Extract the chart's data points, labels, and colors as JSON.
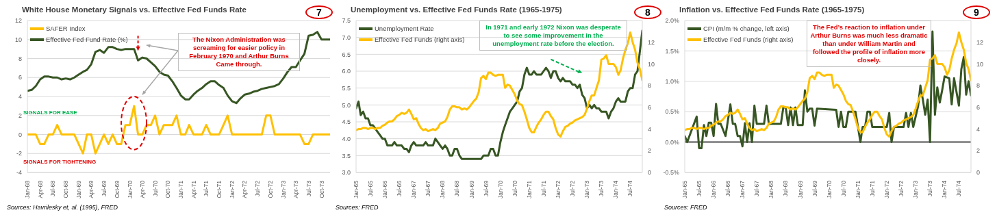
{
  "chart_data": [
    {
      "type": "line",
      "title": "White House Monetary Signals vs. Effective Fed Funds Rate",
      "legend": "top left",
      "grid": "y",
      "x": [
        "1968-01",
        "1968-02",
        "1968-03",
        "1968-04",
        "1968-05",
        "1968-06",
        "1968-07",
        "1968-08",
        "1968-09",
        "1968-10",
        "1968-11",
        "1968-12",
        "1969-01",
        "1969-02",
        "1969-03",
        "1969-04",
        "1969-05",
        "1969-06",
        "1969-07",
        "1969-08",
        "1969-09",
        "1969-10",
        "1969-11",
        "1969-12",
        "1970-01",
        "1970-02",
        "1970-03",
        "1970-04",
        "1970-05",
        "1970-06",
        "1970-07",
        "1970-08",
        "1970-09",
        "1970-10",
        "1970-11",
        "1970-12",
        "1971-01",
        "1971-02",
        "1971-03",
        "1971-04",
        "1971-05",
        "1971-06",
        "1971-07",
        "1971-08",
        "1971-09",
        "1971-10",
        "1971-11",
        "1971-12",
        "1972-01",
        "1972-02",
        "1972-03",
        "1972-04",
        "1972-05",
        "1972-06",
        "1972-07",
        "1972-08",
        "1972-09",
        "1972-10",
        "1972-11",
        "1972-12",
        "1973-01",
        "1973-02",
        "1973-03",
        "1973-04",
        "1973-05",
        "1973-06",
        "1973-07",
        "1973-08",
        "1973-09",
        "1973-10",
        "1973-11",
        "1973-12"
      ],
      "xlim": [
        "1968-01",
        "1973-12"
      ],
      "xticks": [
        {
          "value": "1968-01",
          "label": "Jan-68"
        },
        {
          "value": "1968-04",
          "label": "Apr-68"
        },
        {
          "value": "1968-07",
          "label": "Jul-68"
        },
        {
          "value": "1968-10",
          "label": "Oct-68"
        },
        {
          "value": "1969-01",
          "label": "Jan-69"
        },
        {
          "value": "1969-04",
          "label": "Apr-69"
        },
        {
          "value": "1969-07",
          "label": "Jul-69"
        },
        {
          "value": "1969-10",
          "label": "Oct-69"
        },
        {
          "value": "1970-01",
          "label": "Jan-70"
        },
        {
          "value": "1970-04",
          "label": "Apr-70"
        },
        {
          "value": "1970-07",
          "label": "Jul-70"
        },
        {
          "value": "1970-10",
          "label": "Oct-70"
        },
        {
          "value": "1971-01",
          "label": "Jan-71"
        },
        {
          "value": "1971-04",
          "label": "Apr-71"
        },
        {
          "value": "1971-07",
          "label": "Jul-71"
        },
        {
          "value": "1971-10",
          "label": "Oct-71"
        },
        {
          "value": "1972-01",
          "label": "Jan-72"
        },
        {
          "value": "1972-04",
          "label": "Apr-72"
        },
        {
          "value": "1972-07",
          "label": "Jul-72"
        },
        {
          "value": "1972-10",
          "label": "Oct-72"
        },
        {
          "value": "1973-01",
          "label": "Jan-73"
        },
        {
          "value": "1973-04",
          "label": "Apr-73"
        },
        {
          "value": "1973-07",
          "label": "Jul-73"
        },
        {
          "value": "1973-10",
          "label": "Oct-73"
        }
      ],
      "ylim": [
        -4,
        12
      ],
      "yticks": [
        -4,
        -2,
        0,
        2,
        4,
        6,
        8,
        10,
        12
      ],
      "series": [
        {
          "name": "SAFER Index",
          "color": "#ffc000",
          "values": [
            0,
            0,
            0,
            -1,
            -1,
            0,
            0,
            1,
            0,
            0,
            0,
            0,
            -1,
            -2,
            0,
            0,
            -2,
            -1,
            0,
            -1,
            0,
            -1,
            -1,
            1,
            1,
            3,
            0,
            0,
            1,
            1,
            2,
            0,
            1,
            1,
            1,
            2,
            0,
            0,
            1,
            0,
            0,
            0,
            1,
            0,
            0,
            0,
            1,
            2,
            0,
            0,
            0,
            0,
            0,
            0,
            0,
            0,
            2,
            2,
            0,
            0,
            0,
            0,
            0,
            0,
            0,
            -1,
            -1,
            0,
            0,
            0,
            0,
            0
          ]
        },
        {
          "name": "Effective Fed Fund Rate (%)",
          "color": "#375623",
          "values": [
            4.6,
            4.7,
            5.1,
            5.8,
            6.1,
            6.1,
            6.0,
            6.0,
            5.8,
            5.9,
            5.8,
            6.0,
            6.3,
            6.6,
            6.8,
            7.4,
            8.7,
            8.9,
            8.6,
            9.2,
            9.2,
            9.0,
            8.9,
            9.0,
            9.0,
            9.0,
            7.8,
            8.1,
            8.0,
            7.6,
            7.2,
            6.6,
            6.3,
            6.2,
            5.6,
            4.9,
            4.1,
            3.7,
            3.7,
            4.2,
            4.6,
            4.9,
            5.3,
            5.6,
            5.6,
            5.2,
            4.9,
            4.1,
            3.5,
            3.3,
            3.8,
            4.2,
            4.3,
            4.5,
            4.6,
            4.8,
            4.9,
            5.0,
            5.1,
            5.3,
            5.9,
            6.6,
            7.1,
            7.1,
            7.8,
            8.5,
            10.4,
            10.5,
            10.8,
            10.0,
            10.0,
            10.0
          ]
        }
      ],
      "annotations": [
        "7",
        "The Nixon Administration was screaming for easier policy in February 1970 and Arthur Burns Came through.",
        "SIGNALS FOR EASE",
        "SIGNALS FOR TIGHTENING",
        "Sources: Havrilesky et, al. (1995), FRED"
      ]
    },
    {
      "type": "line",
      "title": "Unemployment vs. Effective Fed Funds Rate (1965-1975)",
      "legend": "top left",
      "grid": "y",
      "x": [
        "1965-01",
        "1965-02",
        "1965-03",
        "1965-04",
        "1965-05",
        "1965-06",
        "1965-07",
        "1965-08",
        "1965-09",
        "1965-10",
        "1965-11",
        "1965-12",
        "1966-01",
        "1966-02",
        "1966-03",
        "1966-04",
        "1966-05",
        "1966-06",
        "1966-07",
        "1966-08",
        "1966-09",
        "1966-10",
        "1966-11",
        "1966-12",
        "1967-01",
        "1967-02",
        "1967-03",
        "1967-04",
        "1967-05",
        "1967-06",
        "1967-07",
        "1967-08",
        "1967-09",
        "1967-10",
        "1967-11",
        "1967-12",
        "1968-01",
        "1968-02",
        "1968-03",
        "1968-04",
        "1968-05",
        "1968-06",
        "1968-07",
        "1968-08",
        "1968-09",
        "1968-10",
        "1968-11",
        "1968-12",
        "1969-01",
        "1969-02",
        "1969-03",
        "1969-04",
        "1969-05",
        "1969-06",
        "1969-07",
        "1969-08",
        "1969-09",
        "1969-10",
        "1969-11",
        "1969-12",
        "1970-01",
        "1970-02",
        "1970-03",
        "1970-04",
        "1970-05",
        "1970-06",
        "1970-07",
        "1970-08",
        "1970-09",
        "1970-10",
        "1970-11",
        "1970-12",
        "1971-01",
        "1971-02",
        "1971-03",
        "1971-04",
        "1971-05",
        "1971-06",
        "1971-07",
        "1971-08",
        "1971-09",
        "1971-10",
        "1971-11",
        "1971-12",
        "1972-01",
        "1972-02",
        "1972-03",
        "1972-04",
        "1972-05",
        "1972-06",
        "1972-07",
        "1972-08",
        "1972-09",
        "1972-10",
        "1972-11",
        "1972-12",
        "1973-01",
        "1973-02",
        "1973-03",
        "1973-04",
        "1973-05",
        "1973-06",
        "1973-07",
        "1973-08",
        "1973-09",
        "1973-10",
        "1973-11",
        "1973-12",
        "1974-01",
        "1974-02",
        "1974-03",
        "1974-04",
        "1974-05",
        "1974-06",
        "1974-07",
        "1974-08",
        "1974-09",
        "1974-10",
        "1974-11",
        "1974-12"
      ],
      "xlim": [
        "1965-01",
        "1974-12"
      ],
      "xticks": [
        {
          "value": "1965-01",
          "label": "Jan-65"
        },
        {
          "value": "1965-07",
          "label": "Jul-65"
        },
        {
          "value": "1966-01",
          "label": "Jan-66"
        },
        {
          "value": "1966-07",
          "label": "Jul-66"
        },
        {
          "value": "1967-01",
          "label": "Jan-67"
        },
        {
          "value": "1967-07",
          "label": "Jul-67"
        },
        {
          "value": "1968-01",
          "label": "Jan-68"
        },
        {
          "value": "1968-07",
          "label": "Jul-68"
        },
        {
          "value": "1969-01",
          "label": "Jan-69"
        },
        {
          "value": "1969-07",
          "label": "Jul-69"
        },
        {
          "value": "1970-01",
          "label": "Jan-70"
        },
        {
          "value": "1970-07",
          "label": "Jul-70"
        },
        {
          "value": "1971-01",
          "label": "Jan-71"
        },
        {
          "value": "1971-07",
          "label": "Jul-71"
        },
        {
          "value": "1972-01",
          "label": "Jan-72"
        },
        {
          "value": "1972-07",
          "label": "Jul-72"
        },
        {
          "value": "1973-01",
          "label": "Jan-73"
        },
        {
          "value": "1973-07",
          "label": "Jul-73"
        },
        {
          "value": "1974-01",
          "label": "Jan-74"
        },
        {
          "value": "1974-07",
          "label": "Jul-74"
        }
      ],
      "ylim": [
        3,
        7.5
      ],
      "yticks": [
        {
          "value": 3,
          "label": "3.0"
        },
        3.5,
        {
          "value": 4,
          "label": "4.0"
        },
        4.5,
        {
          "value": 5,
          "label": "5.0"
        },
        5.5,
        {
          "value": 6,
          "label": "6.0"
        },
        6.5,
        {
          "value": 7,
          "label": "7.0"
        },
        7.5
      ],
      "y2lim": [
        0,
        14
      ],
      "y2ticks": [
        0,
        2,
        4,
        6,
        8,
        10,
        12
      ],
      "series": [
        {
          "name": "Unemployment Rate",
          "color": "#375623",
          "values": [
            4.9,
            5.1,
            4.7,
            4.8,
            4.6,
            4.6,
            4.4,
            4.4,
            4.3,
            4.2,
            4.1,
            4.0,
            4.0,
            3.8,
            3.8,
            3.8,
            3.9,
            3.8,
            3.8,
            3.8,
            3.7,
            3.7,
            3.6,
            3.8,
            3.9,
            3.8,
            3.8,
            3.8,
            3.8,
            3.9,
            3.8,
            3.8,
            3.8,
            4.0,
            3.9,
            3.8,
            3.7,
            3.8,
            3.7,
            3.5,
            3.5,
            3.7,
            3.7,
            3.5,
            3.4,
            3.4,
            3.4,
            3.4,
            3.4,
            3.4,
            3.4,
            3.4,
            3.4,
            3.5,
            3.5,
            3.5,
            3.7,
            3.7,
            3.5,
            3.5,
            3.9,
            4.2,
            4.4,
            4.6,
            4.8,
            4.9,
            5.0,
            5.1,
            5.4,
            5.5,
            5.9,
            6.1,
            5.9,
            5.9,
            6.0,
            5.9,
            5.9,
            5.9,
            6.0,
            6.1,
            6.0,
            5.8,
            6.0,
            6.0,
            5.8,
            5.7,
            5.8,
            5.7,
            5.7,
            5.7,
            5.6,
            5.6,
            5.5,
            5.6,
            5.3,
            5.2,
            4.9,
            5.0,
            4.9,
            5.0,
            4.9,
            4.9,
            4.8,
            4.8,
            4.8,
            4.6,
            4.8,
            4.9,
            5.1,
            5.2,
            5.1,
            5.1,
            5.1,
            5.4,
            5.5,
            5.5,
            5.9,
            6.0,
            6.6,
            7.2
          ]
        },
        {
          "name": "Effective Fed Funds (right axis)",
          "color": "#ffc000",
          "axis": "y2",
          "values": [
            3.9,
            4.0,
            4.0,
            4.1,
            4.1,
            4.0,
            4.1,
            4.1,
            4.0,
            4.1,
            4.1,
            4.3,
            4.4,
            4.6,
            4.7,
            4.7,
            4.9,
            5.2,
            5.3,
            5.5,
            5.4,
            5.5,
            5.8,
            5.4,
            4.9,
            5.0,
            4.5,
            4.1,
            3.9,
            4.0,
            3.8,
            3.9,
            4.0,
            3.9,
            4.1,
            4.5,
            4.6,
            4.7,
            5.1,
            5.8,
            6.1,
            6.1,
            6.0,
            6.0,
            5.8,
            5.9,
            5.8,
            6.0,
            6.3,
            6.6,
            6.8,
            7.4,
            8.7,
            8.9,
            8.6,
            9.2,
            9.2,
            9.0,
            8.9,
            9.0,
            9.0,
            9.0,
            7.8,
            8.1,
            8.0,
            7.6,
            7.2,
            6.6,
            6.3,
            6.2,
            5.6,
            4.9,
            4.1,
            3.7,
            3.7,
            4.2,
            4.6,
            4.9,
            5.3,
            5.6,
            5.6,
            5.2,
            4.9,
            4.1,
            3.5,
            3.3,
            3.8,
            4.2,
            4.3,
            4.5,
            4.6,
            4.8,
            4.9,
            5.0,
            5.1,
            5.3,
            5.9,
            6.6,
            7.1,
            7.1,
            7.8,
            8.5,
            10.4,
            10.5,
            10.8,
            10.0,
            10.0,
            10.0,
            9.7,
            9.0,
            9.4,
            10.5,
            11.3,
            11.9,
            12.9,
            12.0,
            11.3,
            10.1,
            9.5,
            8.5
          ]
        }
      ],
      "annotations": [
        "8",
        "In 1971 and early 1972 Nixon was desperate to see some improvement in the unemployment rate before the election.",
        "Sources: FRED"
      ]
    },
    {
      "type": "line",
      "title": "Inflation vs. Effective Fed Funds Rate (1965-1975)",
      "legend": "top left",
      "grid": "y",
      "x": [
        "1965-01",
        "1965-02",
        "1965-03",
        "1965-04",
        "1965-05",
        "1965-06",
        "1965-07",
        "1965-08",
        "1965-09",
        "1965-10",
        "1965-11",
        "1965-12",
        "1966-01",
        "1966-02",
        "1966-03",
        "1966-04",
        "1966-05",
        "1966-06",
        "1966-07",
        "1966-08",
        "1966-09",
        "1966-10",
        "1966-11",
        "1966-12",
        "1967-01",
        "1967-02",
        "1967-03",
        "1967-04",
        "1967-05",
        "1967-06",
        "1967-07",
        "1967-08",
        "1967-09",
        "1967-10",
        "1967-11",
        "1967-12",
        "1968-01",
        "1968-02",
        "1968-03",
        "1968-04",
        "1968-05",
        "1968-06",
        "1968-07",
        "1968-08",
        "1968-09",
        "1968-10",
        "1968-11",
        "1968-12",
        "1969-01",
        "1969-02",
        "1969-03",
        "1969-04",
        "1969-05",
        "1969-06",
        "1969-07",
        "1969-08",
        "1969-09",
        "1969-10",
        "1969-11",
        "1969-12",
        "1970-01",
        "1970-02",
        "1970-03",
        "1970-04",
        "1970-05",
        "1970-06",
        "1970-07",
        "1970-08",
        "1970-09",
        "1970-10",
        "1970-11",
        "1970-12",
        "1971-01",
        "1971-02",
        "1971-03",
        "1971-04",
        "1971-05",
        "1971-06",
        "1971-07",
        "1971-08",
        "1971-09",
        "1971-10",
        "1971-11",
        "1971-12",
        "1972-01",
        "1972-02",
        "1972-03",
        "1972-04",
        "1972-05",
        "1972-06",
        "1972-07",
        "1972-08",
        "1972-09",
        "1972-10",
        "1972-11",
        "1972-12",
        "1973-01",
        "1973-02",
        "1973-03",
        "1973-04",
        "1973-05",
        "1973-06",
        "1973-07",
        "1973-08",
        "1973-09",
        "1973-10",
        "1973-11",
        "1973-12",
        "1974-01",
        "1974-02",
        "1974-03",
        "1974-04",
        "1974-05",
        "1974-06",
        "1974-07",
        "1974-08",
        "1974-09",
        "1974-10",
        "1974-11",
        "1974-12"
      ],
      "xlim": [
        "1965-01",
        "1974-12"
      ],
      "xticks": [
        {
          "value": "1965-01",
          "label": "Jan-65"
        },
        {
          "value": "1965-07",
          "label": "Jul-65"
        },
        {
          "value": "1966-01",
          "label": "Jan-66"
        },
        {
          "value": "1966-07",
          "label": "Jul-66"
        },
        {
          "value": "1967-01",
          "label": "Jan-67"
        },
        {
          "value": "1967-07",
          "label": "Jul-67"
        },
        {
          "value": "1968-01",
          "label": "Jan-68"
        },
        {
          "value": "1968-07",
          "label": "Jul-68"
        },
        {
          "value": "1969-01",
          "label": "Jan-69"
        },
        {
          "value": "1969-07",
          "label": "Jul-69"
        },
        {
          "value": "1970-01",
          "label": "Jan-70"
        },
        {
          "value": "1970-07",
          "label": "Jul-70"
        },
        {
          "value": "1971-01",
          "label": "Jan-71"
        },
        {
          "value": "1971-07",
          "label": "Jul-71"
        },
        {
          "value": "1972-01",
          "label": "Jan-72"
        },
        {
          "value": "1972-07",
          "label": "Jul-72"
        },
        {
          "value": "1973-01",
          "label": "Jan-73"
        },
        {
          "value": "1973-07",
          "label": "Jul-73"
        },
        {
          "value": "1974-01",
          "label": "Jan-74"
        },
        {
          "value": "1974-07",
          "label": "Jul-74"
        }
      ],
      "ylim": [
        -0.5,
        2
      ],
      "yticks": [
        {
          "value": -0.5,
          "label": "-0.5%"
        },
        {
          "value": 0,
          "label": "0.0%"
        },
        {
          "value": 0.5,
          "label": "0.5%"
        },
        {
          "value": 1,
          "label": "1.0%"
        },
        {
          "value": 1.5,
          "label": "1.5%"
        },
        {
          "value": 2,
          "label": "2.0%"
        }
      ],
      "y2lim": [
        0,
        14
      ],
      "y2ticks": [
        0,
        2,
        4,
        6,
        8,
        10,
        12
      ],
      "ref_lines": [
        {
          "axis": "y",
          "value": 0,
          "color": "#000000"
        }
      ],
      "series": [
        {
          "name": "CPI (m/m % change, left axis)",
          "color": "#375623",
          "x": [
            "1965-01",
            "1965-02",
            "1965-06",
            "1965-07",
            "1965-08",
            "1965-09",
            "1965-10",
            "1965-11",
            "1965-12",
            "1966-01",
            "1966-02",
            "1966-03",
            "1966-04",
            "1966-06",
            "1966-08",
            "1966-09",
            "1966-10",
            "1966-11",
            "1966-12",
            "1967-01",
            "1967-02",
            "1967-03",
            "1967-04",
            "1967-05",
            "1967-06",
            "1967-07",
            "1967-10",
            "1967-11",
            "1967-12",
            "1968-05",
            "1968-06",
            "1968-07",
            "1968-08",
            "1968-09",
            "1968-10",
            "1968-11",
            "1968-12",
            "1969-02",
            "1969-03",
            "1969-04",
            "1969-05",
            "1969-06",
            "1969-07",
            "1969-08",
            "1970-04",
            "1970-05",
            "1970-06",
            "1970-07",
            "1970-08",
            "1970-09",
            "1970-12",
            "1971-02",
            "1971-03",
            "1971-04",
            "1971-05",
            "1971-06",
            "1971-07",
            "1972-01",
            "1972-02",
            "1972-03",
            "1972-04",
            "1972-08",
            "1972-09",
            "1972-10",
            "1972-11",
            "1972-12",
            "1973-02",
            "1973-03",
            "1973-04",
            "1973-05",
            "1973-06",
            "1973-07",
            "1973-08",
            "1973-09",
            "1973-10",
            "1973-11",
            "1973-12",
            "1974-01",
            "1974-03",
            "1974-04",
            "1974-05",
            "1974-07",
            "1974-08",
            "1974-09",
            "1974-10",
            "1974-11",
            "1974-12"
          ],
          "values": [
            0.1,
            0.0,
            0.42,
            -0.1,
            -0.1,
            0.28,
            0.1,
            0.32,
            0.32,
            0.1,
            0.63,
            0.3,
            0.3,
            0.1,
            0.62,
            0.3,
            0.3,
            0.1,
            0.1,
            -0.07,
            0.31,
            0.0,
            0.31,
            0.0,
            0.6,
            0.3,
            0.3,
            0.6,
            0.3,
            0.3,
            0.57,
            0.57,
            0.28,
            0.57,
            0.28,
            0.57,
            0.28,
            0.28,
            0.85,
            0.5,
            0.55,
            0.55,
            0.27,
            0.55,
            0.53,
            0.25,
            0.5,
            0.25,
            0.25,
            0.5,
            0.5,
            0.0,
            0.25,
            0.25,
            0.5,
            0.5,
            0.25,
            0.25,
            0.48,
            0.0,
            0.25,
            0.25,
            0.48,
            0.25,
            0.48,
            0.25,
            0.6,
            0.93,
            0.7,
            0.45,
            0.7,
            0.0,
            1.82,
            0.45,
            0.9,
            0.65,
            0.85,
            1.08,
            1.05,
            0.62,
            1.05,
            0.6,
            1.2,
            1.4,
            0.78,
            1.0,
            0.77
          ]
        },
        {
          "name": "Effective Fed Funds (right axis)",
          "color": "#ffc000",
          "axis": "y2",
          "values": [
            3.9,
            4.0,
            4.0,
            4.1,
            4.1,
            4.0,
            4.1,
            4.1,
            4.0,
            4.1,
            4.1,
            4.3,
            4.4,
            4.6,
            4.7,
            4.7,
            4.9,
            5.2,
            5.3,
            5.5,
            5.4,
            5.5,
            5.8,
            5.4,
            4.9,
            5.0,
            4.5,
            4.1,
            3.9,
            4.0,
            3.8,
            3.9,
            4.0,
            3.9,
            4.1,
            4.5,
            4.6,
            4.7,
            5.1,
            5.8,
            6.1,
            6.1,
            6.0,
            6.0,
            5.8,
            5.9,
            5.8,
            6.0,
            6.3,
            6.6,
            6.8,
            7.4,
            8.7,
            8.9,
            8.6,
            9.2,
            9.2,
            9.0,
            8.9,
            9.0,
            9.0,
            9.0,
            7.8,
            8.1,
            8.0,
            7.6,
            7.2,
            6.6,
            6.3,
            6.2,
            5.6,
            4.9,
            4.1,
            3.7,
            3.7,
            4.2,
            4.6,
            4.9,
            5.3,
            5.6,
            5.6,
            5.2,
            4.9,
            4.1,
            3.5,
            3.3,
            3.8,
            4.2,
            4.3,
            4.5,
            4.6,
            4.8,
            4.9,
            5.0,
            5.1,
            5.3,
            5.9,
            6.6,
            7.1,
            7.1,
            7.8,
            8.5,
            10.4,
            10.5,
            10.8,
            10.0,
            10.0,
            10.0,
            9.7,
            9.0,
            9.4,
            10.5,
            11.3,
            11.9,
            12.9,
            12.0,
            11.3,
            10.1,
            9.5,
            8.5
          ]
        }
      ],
      "annotations": [
        "9",
        "The Fed’s reaction to inflation under Arthur Burns was much less dramatic than under William Martin and followed the profile of inflation more closely.",
        "Sources: FRED"
      ]
    }
  ]
}
